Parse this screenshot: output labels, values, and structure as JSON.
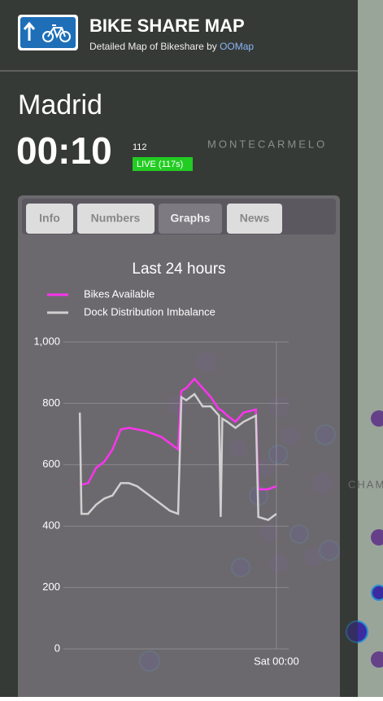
{
  "header": {
    "title": "BIKE SHARE MAP",
    "subtitle": "Detailed Map of Bikeshare by",
    "link": "OOMap"
  },
  "city": "Madrid",
  "time": "00:10",
  "count": "112",
  "live": "LIVE (117s)",
  "map_labels": [
    "MONTECARMELO",
    "CHAM"
  ],
  "tabs": [
    "Info",
    "Numbers",
    "Graphs",
    "News"
  ],
  "chart_data": {
    "type": "line",
    "title": "Last 24 hours",
    "x": [
      -24,
      -23.8,
      -23,
      -22,
      -21,
      -20,
      -19,
      -18,
      -17,
      -16,
      -15,
      -14,
      -13,
      -12,
      -11.6,
      -11,
      -10,
      -9,
      -8,
      -7,
      -6.8,
      -6.6,
      -6,
      -5,
      -4,
      -2.5,
      -2.2,
      -1,
      0
    ],
    "series": [
      {
        "name": "Bikes Available",
        "color": "#ff33ee",
        "values": [
          540,
          535,
          540,
          590,
          610,
          650,
          715,
          720,
          715,
          710,
          700,
          690,
          670,
          650,
          840,
          850,
          880,
          850,
          820,
          780,
          780,
          775,
          760,
          740,
          770,
          780,
          520,
          520,
          530
        ]
      },
      {
        "name": "Dock Distribution Imbalance",
        "color": "#d0d0d0",
        "values": [
          770,
          440,
          440,
          470,
          490,
          500,
          540,
          540,
          530,
          510,
          490,
          470,
          450,
          440,
          820,
          810,
          830,
          790,
          790,
          760,
          430,
          750,
          740,
          720,
          740,
          760,
          430,
          420,
          440
        ]
      }
    ],
    "xlim": [
      -26,
      1.5
    ],
    "xticks": [
      {
        "value": 0,
        "label": "Sat 00:00"
      }
    ],
    "ylim": [
      0,
      1000
    ],
    "yticks": [
      0,
      200,
      400,
      600,
      800,
      {
        "value": 1000,
        "label": "1,000"
      }
    ],
    "grid": true,
    "legend": "top-left"
  }
}
